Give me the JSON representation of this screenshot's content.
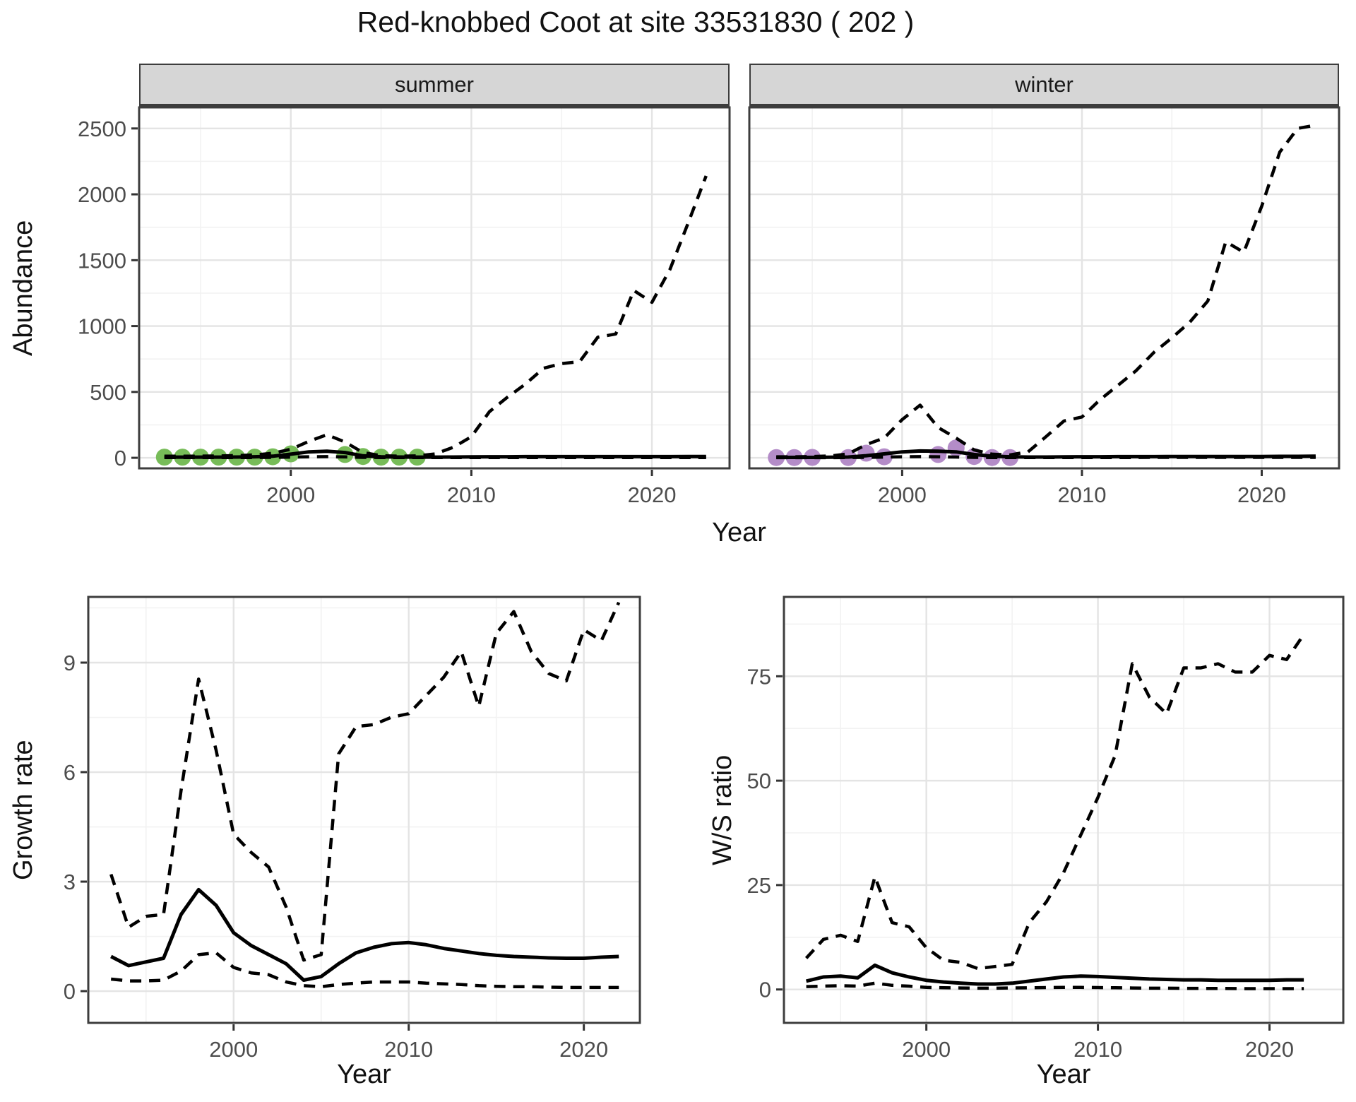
{
  "title": "Red-knobbed Coot at site 33531830 ( 202 )",
  "colors": {
    "summer_point": "#77bc58",
    "winter_point": "#b48cc8",
    "line": "#000000",
    "panel_border": "#3d3d3d",
    "grid_major": "#e4e4e4",
    "grid_minor": "#f2f2f2",
    "strip_bg": "#d6d6d6",
    "tick_label": "#4d4d4d"
  },
  "chart_data": [
    {
      "id": "summer",
      "type": "line",
      "facet_label": "summer",
      "xlabel": "Year",
      "ylabel": "Abundance",
      "xlim": [
        1991.6,
        2024.3
      ],
      "ylim": [
        -80,
        2660
      ],
      "xticks": [
        2000,
        2010,
        2020
      ],
      "xticks_minor": [
        1995,
        2005,
        2015
      ],
      "yticks": [
        0,
        500,
        1000,
        1500,
        2000,
        2500
      ],
      "yticks_minor": [
        250,
        750,
        1250,
        1750,
        2250
      ],
      "grid": true,
      "legend": "none",
      "series": [
        {
          "name": "observed",
          "style": "points",
          "x": [
            1993,
            1994,
            1995,
            1996,
            1997,
            1998,
            1999,
            2000,
            2003,
            2004,
            2005,
            2006,
            2007
          ],
          "y": [
            5,
            5,
            5,
            5,
            5,
            5,
            8,
            30,
            25,
            10,
            5,
            5,
            5
          ]
        },
        {
          "name": "mean",
          "style": "solid",
          "x": [
            1993,
            1994,
            1995,
            1996,
            1997,
            1998,
            1999,
            2000,
            2001,
            2002,
            2003,
            2004,
            2005,
            2006,
            2007,
            2008,
            2009,
            2010,
            2011,
            2012,
            2013,
            2014,
            2015,
            2016,
            2017,
            2018,
            2019,
            2020,
            2021,
            2022,
            2023
          ],
          "y": [
            5,
            5,
            5,
            5,
            6,
            8,
            12,
            28,
            45,
            50,
            40,
            15,
            8,
            6,
            5,
            5,
            6,
            7,
            8,
            8,
            9,
            9,
            9,
            9,
            9,
            9,
            9,
            9,
            9,
            10,
            10
          ]
        },
        {
          "name": "lower_ci",
          "style": "dashed",
          "x": [
            1993,
            1994,
            1995,
            1996,
            1997,
            1998,
            1999,
            2000,
            2001,
            2002,
            2003,
            2004,
            2005,
            2006,
            2007,
            2008,
            2009,
            2010,
            2011,
            2012,
            2013,
            2014,
            2015,
            2016,
            2017,
            2018,
            2019,
            2020,
            2021,
            2022,
            2023
          ],
          "y": [
            2,
            2,
            2,
            2,
            2,
            2,
            3,
            5,
            8,
            9,
            7,
            3,
            2,
            2,
            2,
            2,
            2,
            2,
            2,
            2,
            2,
            2,
            2,
            2,
            2,
            2,
            2,
            2,
            2,
            2,
            2
          ]
        },
        {
          "name": "upper_ci",
          "style": "dashed",
          "x": [
            1993,
            1994,
            1995,
            1996,
            1997,
            1998,
            1999,
            2000,
            2001,
            2002,
            2003,
            2004,
            2005,
            2006,
            2007,
            2008,
            2009,
            2010,
            2011,
            2012,
            2013,
            2014,
            2015,
            2016,
            2017,
            2018,
            2019,
            2020,
            2021,
            2022,
            2023
          ],
          "y": [
            12,
            12,
            13,
            14,
            17,
            22,
            35,
            65,
            125,
            175,
            120,
            40,
            16,
            13,
            15,
            30,
            80,
            160,
            350,
            460,
            560,
            680,
            715,
            730,
            915,
            940,
            1270,
            1180,
            1430,
            1780,
            2140
          ]
        }
      ]
    },
    {
      "id": "winter",
      "type": "line",
      "facet_label": "winter",
      "xlabel": "Year",
      "ylabel": "Abundance",
      "xlim": [
        1991.5,
        2024.3
      ],
      "ylim": [
        -80,
        2660
      ],
      "xticks": [
        2000,
        2010,
        2020
      ],
      "xticks_minor": [
        1995,
        2005,
        2015
      ],
      "yticks": [
        0,
        500,
        1000,
        1500,
        2000,
        2500
      ],
      "yticks_minor": [
        250,
        750,
        1250,
        1750,
        2250
      ],
      "grid": true,
      "legend": "none",
      "series": [
        {
          "name": "observed",
          "style": "points",
          "x": [
            1993,
            1994,
            1995,
            1997,
            1998,
            1999,
            2002,
            2003,
            2004,
            2005,
            2006
          ],
          "y": [
            2,
            2,
            3,
            2,
            35,
            8,
            25,
            75,
            10,
            2,
            2
          ]
        },
        {
          "name": "mean",
          "style": "solid",
          "x": [
            1993,
            1994,
            1995,
            1996,
            1997,
            1998,
            1999,
            2000,
            2001,
            2002,
            2003,
            2004,
            2005,
            2006,
            2007,
            2008,
            2009,
            2010,
            2011,
            2012,
            2013,
            2014,
            2015,
            2016,
            2017,
            2018,
            2019,
            2020,
            2021,
            2022,
            2023
          ],
          "y": [
            3,
            3,
            3,
            4,
            6,
            16,
            30,
            45,
            52,
            50,
            45,
            25,
            12,
            8,
            6,
            6,
            7,
            8,
            8,
            9,
            9,
            9,
            10,
            10,
            10,
            10,
            10,
            10,
            11,
            11,
            12
          ]
        },
        {
          "name": "lower_ci",
          "style": "dashed",
          "x": [
            1993,
            1994,
            1995,
            1996,
            1997,
            1998,
            1999,
            2000,
            2001,
            2002,
            2003,
            2004,
            2005,
            2006,
            2007,
            2008,
            2009,
            2010,
            2011,
            2012,
            2013,
            2014,
            2015,
            2016,
            2017,
            2018,
            2019,
            2020,
            2021,
            2022,
            2023
          ],
          "y": [
            1,
            1,
            1,
            1,
            2,
            3,
            5,
            8,
            9,
            8,
            6,
            3,
            2,
            2,
            2,
            2,
            2,
            2,
            2,
            2,
            2,
            3,
            3,
            3,
            3,
            3,
            3,
            3,
            3,
            3,
            3
          ]
        },
        {
          "name": "upper_ci",
          "style": "dashed",
          "x": [
            1993,
            1994,
            1995,
            1996,
            1997,
            1998,
            1999,
            2000,
            2001,
            2002,
            2003,
            2004,
            2005,
            2006,
            2007,
            2008,
            2009,
            2010,
            2011,
            2012,
            2013,
            2014,
            2015,
            2016,
            2017,
            2018,
            2019,
            2020,
            2021,
            2022,
            2023
          ],
          "y": [
            8,
            8,
            10,
            14,
            30,
            100,
            150,
            290,
            400,
            230,
            150,
            60,
            28,
            22,
            45,
            160,
            280,
            310,
            440,
            550,
            660,
            800,
            910,
            1030,
            1190,
            1640,
            1560,
            1910,
            2320,
            2500,
            2525
          ]
        }
      ]
    },
    {
      "id": "growth",
      "type": "line",
      "facet_label": "",
      "xlabel": "Year",
      "ylabel": "Growth rate",
      "xlim": [
        1991.7,
        2023.2
      ],
      "ylim": [
        -0.87,
        10.8
      ],
      "xticks": [
        2000,
        2010,
        2020
      ],
      "xticks_minor": [
        1995,
        2005,
        2015
      ],
      "yticks": [
        0,
        3,
        6,
        9
      ],
      "yticks_minor": [
        1.5,
        4.5,
        7.5,
        10.5
      ],
      "grid": true,
      "legend": "none",
      "series": [
        {
          "name": "mean",
          "style": "solid",
          "x": [
            1993,
            1994,
            1995,
            1996,
            1997,
            1998,
            1999,
            2000,
            2001,
            2002,
            2003,
            2004,
            2005,
            2006,
            2007,
            2008,
            2009,
            2010,
            2011,
            2012,
            2013,
            2014,
            2015,
            2016,
            2017,
            2018,
            2019,
            2020,
            2021,
            2022
          ],
          "y": [
            0.95,
            0.7,
            0.8,
            0.9,
            2.1,
            2.78,
            2.35,
            1.6,
            1.25,
            1.0,
            0.75,
            0.3,
            0.4,
            0.75,
            1.05,
            1.2,
            1.3,
            1.33,
            1.27,
            1.17,
            1.1,
            1.03,
            0.98,
            0.95,
            0.93,
            0.91,
            0.9,
            0.9,
            0.93,
            0.95
          ]
        },
        {
          "name": "lower_ci",
          "style": "dashed",
          "x": [
            1993,
            1994,
            1995,
            1996,
            1997,
            1998,
            1999,
            2000,
            2001,
            2002,
            2003,
            2004,
            2005,
            2006,
            2007,
            2008,
            2009,
            2010,
            2011,
            2012,
            2013,
            2014,
            2015,
            2016,
            2017,
            2018,
            2019,
            2020,
            2021,
            2022
          ],
          "y": [
            0.33,
            0.28,
            0.28,
            0.3,
            0.55,
            1.0,
            1.05,
            0.65,
            0.5,
            0.45,
            0.25,
            0.15,
            0.12,
            0.18,
            0.22,
            0.25,
            0.25,
            0.25,
            0.22,
            0.2,
            0.18,
            0.15,
            0.13,
            0.12,
            0.12,
            0.11,
            0.1,
            0.1,
            0.1,
            0.1
          ]
        },
        {
          "name": "upper_ci",
          "style": "dashed",
          "x": [
            1993,
            1994,
            1995,
            1996,
            1997,
            1998,
            1999,
            2000,
            2001,
            2002,
            2003,
            2004,
            2005,
            2006,
            2007,
            2008,
            2009,
            2010,
            2011,
            2012,
            2013,
            2014,
            2015,
            2016,
            2017,
            2018,
            2019,
            2020,
            2021,
            2022
          ],
          "y": [
            3.2,
            1.75,
            2.05,
            2.1,
            5.5,
            8.55,
            6.6,
            4.3,
            3.8,
            3.4,
            2.3,
            0.85,
            1.0,
            6.5,
            7.25,
            7.3,
            7.5,
            7.6,
            8.1,
            8.6,
            9.3,
            7.8,
            9.8,
            10.4,
            9.3,
            8.7,
            8.5,
            9.9,
            9.6,
            10.65
          ]
        }
      ]
    },
    {
      "id": "ws",
      "type": "line",
      "facet_label": "",
      "xlabel": "Year",
      "ylabel": "W/S ratio",
      "xlim": [
        1991.7,
        2024.3
      ],
      "ylim": [
        -8,
        94
      ],
      "xticks": [
        2000,
        2010,
        2020
      ],
      "xticks_minor": [
        1995,
        2005,
        2015
      ],
      "yticks": [
        0,
        25,
        50,
        75
      ],
      "yticks_minor": [
        12.5,
        37.5,
        62.5,
        87.5
      ],
      "grid": true,
      "legend": "none",
      "series": [
        {
          "name": "mean",
          "style": "solid",
          "x": [
            1993,
            1994,
            1995,
            1996,
            1997,
            1998,
            1999,
            2000,
            2001,
            2002,
            2003,
            2004,
            2005,
            2006,
            2007,
            2008,
            2009,
            2010,
            2011,
            2012,
            2013,
            2014,
            2015,
            2016,
            2017,
            2018,
            2019,
            2020,
            2021,
            2022
          ],
          "y": [
            2.0,
            3.0,
            3.2,
            2.8,
            5.8,
            4.0,
            3.0,
            2.2,
            1.8,
            1.5,
            1.3,
            1.3,
            1.5,
            2.0,
            2.5,
            3.0,
            3.2,
            3.1,
            2.9,
            2.7,
            2.5,
            2.4,
            2.3,
            2.3,
            2.2,
            2.2,
            2.2,
            2.2,
            2.3,
            2.3
          ]
        },
        {
          "name": "lower_ci",
          "style": "dashed",
          "x": [
            1993,
            1994,
            1995,
            1996,
            1997,
            1998,
            1999,
            2000,
            2001,
            2002,
            2003,
            2004,
            2005,
            2006,
            2007,
            2008,
            2009,
            2010,
            2011,
            2012,
            2013,
            2014,
            2015,
            2016,
            2017,
            2018,
            2019,
            2020,
            2021,
            2022
          ],
          "y": [
            0.7,
            0.8,
            0.9,
            0.8,
            1.5,
            1.0,
            0.8,
            0.5,
            0.4,
            0.35,
            0.3,
            0.3,
            0.35,
            0.4,
            0.45,
            0.5,
            0.5,
            0.45,
            0.4,
            0.35,
            0.3,
            0.3,
            0.28,
            0.25,
            0.25,
            0.22,
            0.2,
            0.2,
            0.2,
            0.2
          ]
        },
        {
          "name": "upper_ci",
          "style": "dashed",
          "x": [
            1993,
            1994,
            1995,
            1996,
            1997,
            1998,
            1999,
            2000,
            2001,
            2002,
            2003,
            2004,
            2005,
            2006,
            2007,
            2008,
            2009,
            2010,
            2011,
            2012,
            2013,
            2014,
            2015,
            2016,
            2017,
            2018,
            2019,
            2020,
            2021,
            2022
          ],
          "y": [
            7.5,
            12.0,
            13.0,
            11.5,
            27.0,
            16.0,
            15.0,
            10.0,
            7.0,
            6.5,
            5.0,
            5.5,
            6.0,
            16.0,
            21.0,
            28.0,
            37.0,
            46.0,
            56.0,
            78.0,
            70.0,
            66.0,
            77.0,
            77.0,
            78.0,
            76.0,
            76.0,
            80.0,
            79.0,
            85.0
          ]
        }
      ]
    }
  ]
}
